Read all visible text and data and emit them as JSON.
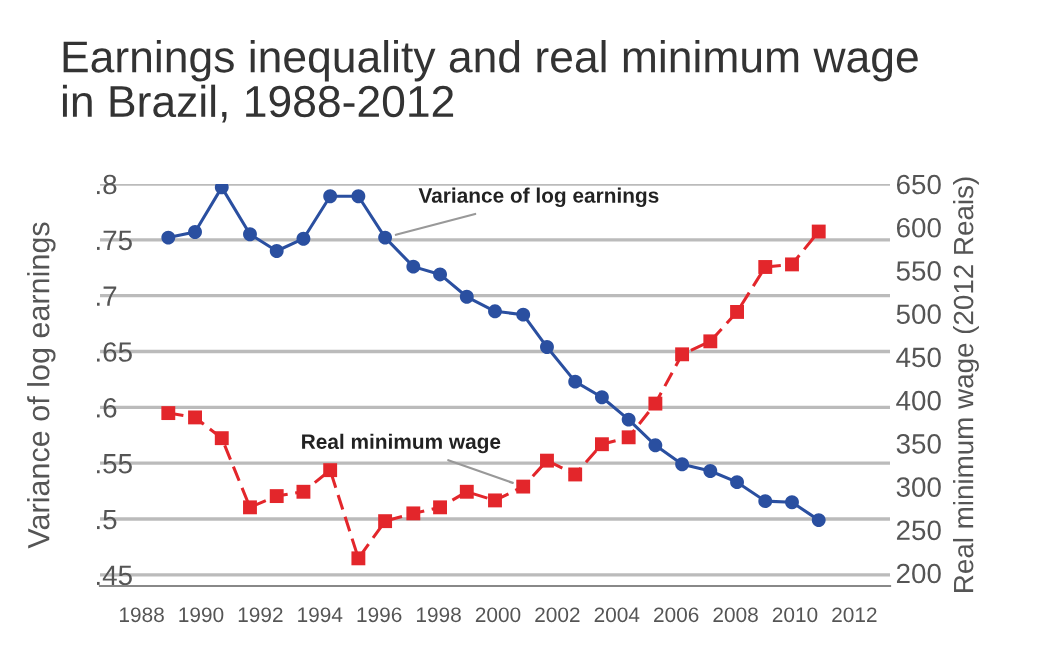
{
  "chart_data": {
    "type": "line",
    "title": "Earnings inequality and real minimum wage\nin Brazil, 1988-2012",
    "ylabel": "Variance of log earnings",
    "y2label": "Real minimum wage (2012 Reais)",
    "xlim": [
      1986.6,
      2013.2
    ],
    "xticks": [
      1988,
      1990,
      1992,
      1994,
      1996,
      1998,
      2000,
      2002,
      2004,
      2006,
      2008,
      2010,
      2012
    ],
    "ylim": [
      0.44,
      0.8
    ],
    "yticks": [
      {
        "value": 0.45,
        "label": ".45"
      },
      {
        "value": 0.5,
        "label": ".5"
      },
      {
        "value": 0.55,
        "label": ".55"
      },
      {
        "value": 0.6,
        "label": ".6"
      },
      {
        "value": 0.65,
        "label": ".65"
      },
      {
        "value": 0.7,
        "label": ".7"
      },
      {
        "value": 0.75,
        "label": ".75"
      },
      {
        "value": 0.8,
        "label": ".8"
      }
    ],
    "y2lim": [
      185,
      650
    ],
    "y2ticks": [
      200,
      250,
      300,
      350,
      400,
      450,
      500,
      550,
      600,
      650
    ],
    "grid": "y",
    "series": [
      {
        "name": "Variance of log earnings",
        "color": "#2a4fa0",
        "marker": "circle",
        "line_style": "solid",
        "x": [
          1988.9,
          1989.8,
          1990.7,
          1991.65,
          1992.55,
          1993.45,
          1994.35,
          1995.3,
          1996.2,
          1997.15,
          1998.05,
          1998.95,
          1999.9,
          2000.85,
          2001.65,
          2002.6,
          2003.5,
          2004.4,
          2005.3,
          2006.2,
          2007.15,
          2008.05,
          2009.0,
          2009.9,
          2010.8
        ],
        "values": [
          0.752,
          0.757,
          0.797,
          0.755,
          0.74,
          0.751,
          0.789,
          0.789,
          0.752,
          0.726,
          0.719,
          0.699,
          0.686,
          0.683,
          0.654,
          0.623,
          0.609,
          0.589,
          0.566,
          0.549,
          0.543,
          0.533,
          0.516,
          0.515,
          0.499
        ]
      },
      {
        "name": "Real minimum wage",
        "color": "#e3262b",
        "marker": "square",
        "line_style": "dashed",
        "axis": "y2",
        "x": [
          1988.9,
          1989.8,
          1990.7,
          1991.65,
          1992.55,
          1993.45,
          1994.35,
          1995.3,
          1996.2,
          1997.15,
          1998.05,
          1998.95,
          1999.9,
          2000.85,
          2001.65,
          2002.6,
          2003.5,
          2004.4,
          2005.3,
          2006.2,
          2007.15,
          2008.05,
          2009.0,
          2009.9,
          2010.8
        ],
        "values": [
          385,
          380,
          356,
          276,
          289,
          294,
          319,
          217,
          260,
          269,
          276,
          294,
          284,
          300,
          330,
          314,
          349,
          357,
          396,
          453,
          468,
          502,
          554,
          557,
          595
        ]
      }
    ]
  }
}
